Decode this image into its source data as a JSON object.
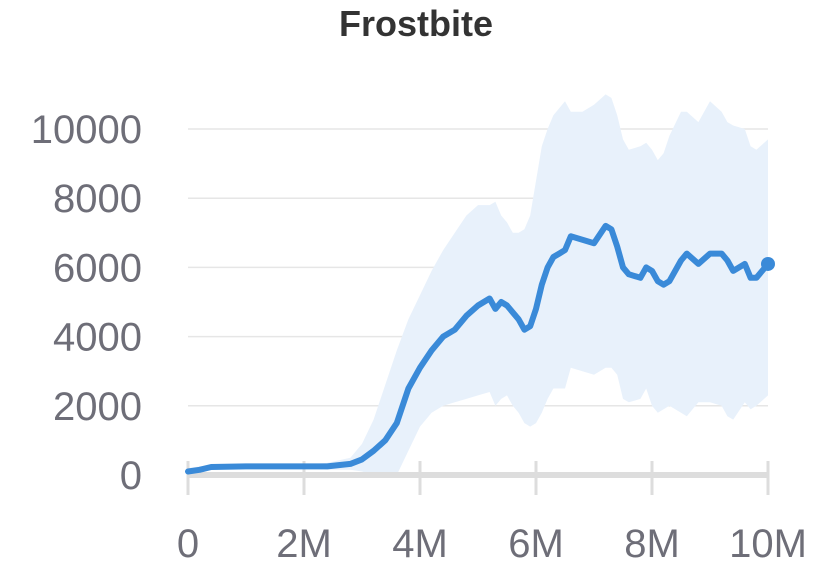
{
  "chart_data": {
    "type": "line",
    "title": "Frostbite",
    "xlabel": "",
    "ylabel": "",
    "xlim": [
      0,
      10000000
    ],
    "ylim": [
      0,
      10000
    ],
    "x_ticks": [
      {
        "value": 0,
        "label": "0"
      },
      {
        "value": 2000000,
        "label": "2M"
      },
      {
        "value": 4000000,
        "label": "4M"
      },
      {
        "value": 6000000,
        "label": "6M"
      },
      {
        "value": 8000000,
        "label": "8M"
      },
      {
        "value": 10000000,
        "label": "10M"
      }
    ],
    "y_ticks": [
      {
        "value": 0,
        "label": "0"
      },
      {
        "value": 2000,
        "label": "2000"
      },
      {
        "value": 4000,
        "label": "4000"
      },
      {
        "value": 6000,
        "label": "6000"
      },
      {
        "value": 8000,
        "label": "8000"
      },
      {
        "value": 10000,
        "label": "10000"
      }
    ],
    "grid": true,
    "colors": {
      "line": "#3a8ad8",
      "band": "#e8f1fb"
    },
    "series": [
      {
        "x": [
          0,
          200000,
          400000,
          1000000,
          2000000,
          2400000,
          2800000,
          3000000,
          3200000,
          3400000,
          3600000,
          3800000,
          4000000,
          4200000,
          4400000,
          4600000,
          4800000,
          5000000,
          5200000,
          5300000,
          5400000,
          5500000,
          5600000,
          5700000,
          5800000,
          5900000,
          6000000,
          6100000,
          6200000,
          6300000,
          6400000,
          6500000,
          6600000,
          6800000,
          7000000,
          7200000,
          7300000,
          7400000,
          7500000,
          7600000,
          7800000,
          7900000,
          8000000,
          8100000,
          8200000,
          8300000,
          8500000,
          8600000,
          8800000,
          9000000,
          9200000,
          9300000,
          9400000,
          9600000,
          9700000,
          9800000,
          10000000
        ],
        "y": [
          100,
          150,
          230,
          250,
          250,
          250,
          320,
          450,
          700,
          1000,
          1500,
          2500,
          3100,
          3600,
          4000,
          4200,
          4600,
          4900,
          5100,
          4800,
          5000,
          4900,
          4700,
          4500,
          4200,
          4300,
          4800,
          5500,
          6000,
          6300,
          6400,
          6500,
          6900,
          6800,
          6700,
          7200,
          7100,
          6600,
          6000,
          5800,
          5700,
          6000,
          5900,
          5600,
          5500,
          5600,
          6200,
          6400,
          6100,
          6400,
          6400,
          6200,
          5900,
          6100,
          5700,
          5700,
          6100
        ],
        "upper": [
          200,
          250,
          280,
          300,
          300,
          350,
          500,
          900,
          1600,
          2600,
          3600,
          4500,
          5200,
          5900,
          6500,
          7000,
          7500,
          7800,
          7800,
          7900,
          7500,
          7300,
          7000,
          7000,
          7100,
          7500,
          8500,
          9500,
          10000,
          10400,
          10600,
          10800,
          10500,
          10500,
          10700,
          11000,
          10900,
          10400,
          9700,
          9400,
          9500,
          9600,
          9400,
          9100,
          9300,
          9800,
          10500,
          10500,
          10200,
          10800,
          10500,
          10200,
          10100,
          10000,
          9500,
          9400,
          9700
        ],
        "lower": [
          0,
          50,
          150,
          200,
          200,
          150,
          150,
          100,
          0,
          0,
          0,
          700,
          1400,
          1800,
          2000,
          2100,
          2200,
          2300,
          2400,
          2000,
          2200,
          2300,
          2000,
          1800,
          1500,
          1400,
          1500,
          1800,
          2200,
          2500,
          2500,
          2500,
          3100,
          3000,
          2900,
          3100,
          3100,
          2900,
          2200,
          2100,
          2200,
          2500,
          2000,
          1800,
          1900,
          2000,
          1800,
          1700,
          2100,
          2100,
          2000,
          1700,
          1600,
          2100,
          1900,
          2000,
          2300
        ]
      }
    ]
  }
}
